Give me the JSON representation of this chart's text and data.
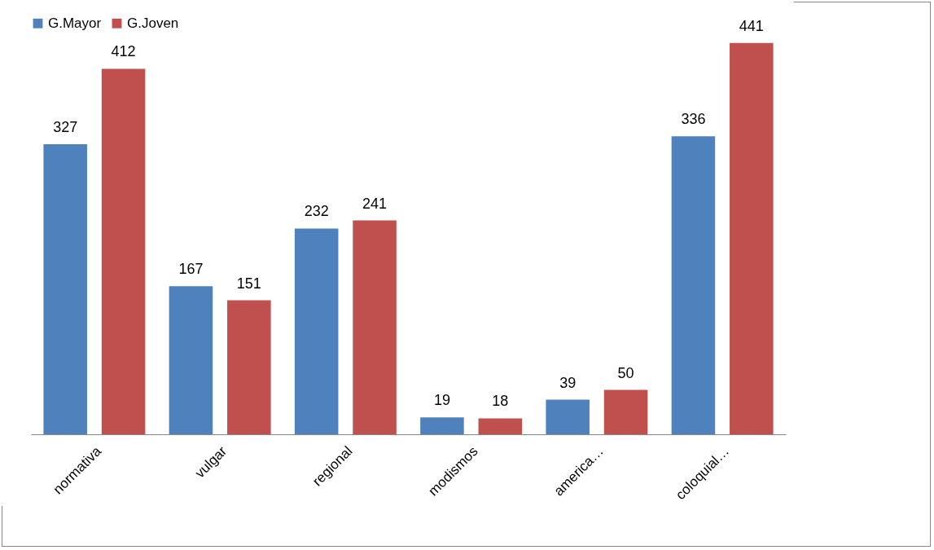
{
  "chart_data": {
    "type": "bar",
    "categories": [
      "normativa",
      "vulgar",
      "regional",
      "modismos",
      "america…",
      "coloquial…"
    ],
    "series": [
      {
        "name": "G.Mayor",
        "color": "#4f81bd",
        "values": [
          327,
          167,
          232,
          19,
          39,
          336
        ]
      },
      {
        "name": "G.Joven",
        "color": "#c0504d",
        "values": [
          412,
          151,
          241,
          18,
          50,
          441
        ]
      }
    ],
    "data_labels": true,
    "legend": "top"
  }
}
